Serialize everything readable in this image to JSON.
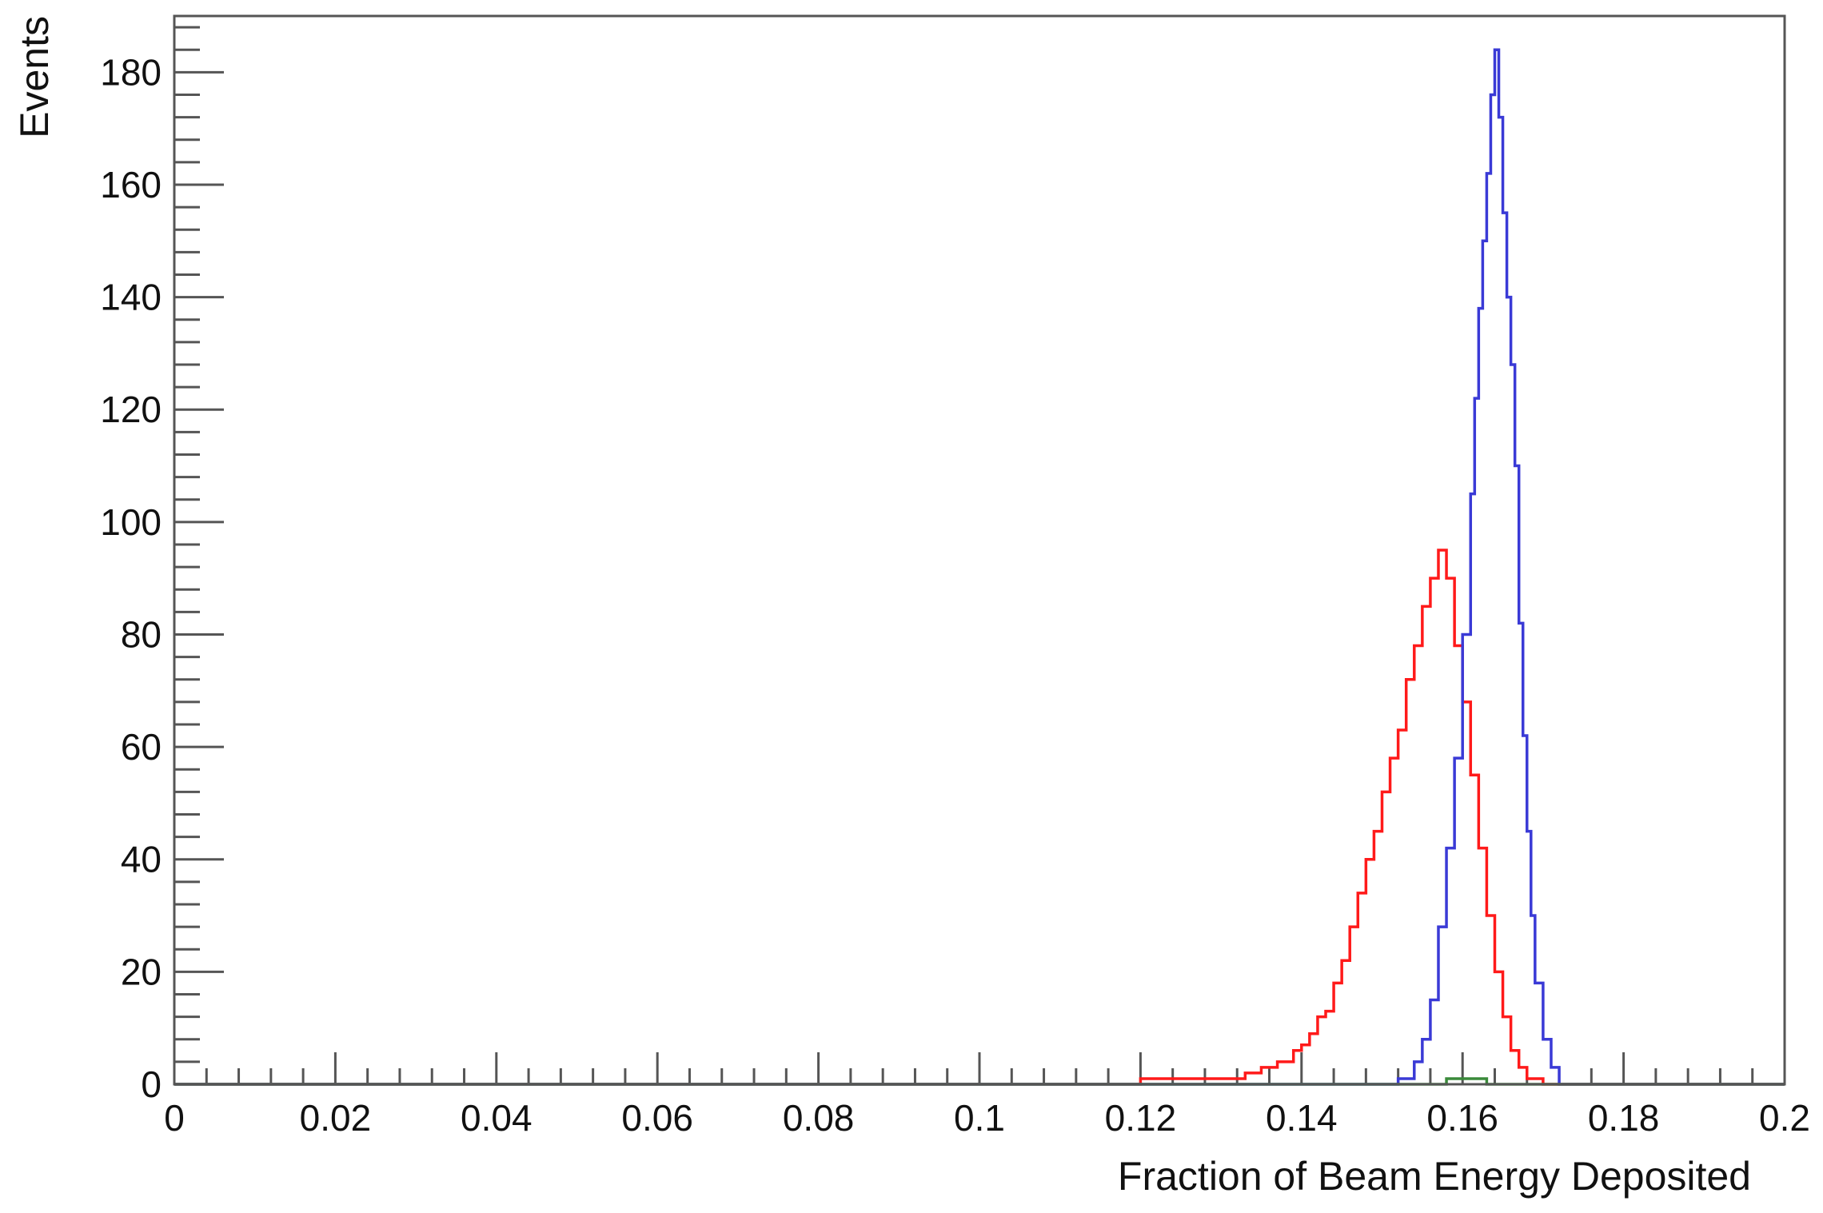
{
  "chart_data": {
    "type": "line",
    "xlabel": "Fraction of Beam Energy Deposited",
    "ylabel": "Events",
    "xlim": [
      0,
      0.2
    ],
    "ylim": [
      0,
      190
    ],
    "x_ticks": [
      0,
      0.02,
      0.04,
      0.06,
      0.08,
      0.1,
      0.12,
      0.14,
      0.16,
      0.18,
      0.2
    ],
    "x_tick_labels": [
      "0",
      "0.02",
      "0.04",
      "0.06",
      "0.08",
      "0.1",
      "0.12",
      "0.14",
      "0.16",
      "0.18",
      "0.2"
    ],
    "y_ticks": [
      0,
      20,
      40,
      60,
      80,
      100,
      120,
      140,
      160,
      180
    ],
    "y_tick_labels": [
      "0",
      "20",
      "40",
      "60",
      "80",
      "100",
      "120",
      "140",
      "160",
      "180"
    ],
    "grid": false,
    "legend": "none",
    "series": [
      {
        "color": "#ff1a1a",
        "x": [
          0.0,
          0.112,
          0.12,
          0.126,
          0.13,
          0.133,
          0.135,
          0.137,
          0.139,
          0.14,
          0.141,
          0.142,
          0.143,
          0.144,
          0.145,
          0.146,
          0.147,
          0.148,
          0.149,
          0.15,
          0.151,
          0.152,
          0.153,
          0.154,
          0.155,
          0.156,
          0.157,
          0.158,
          0.159,
          0.16,
          0.161,
          0.162,
          0.163,
          0.164,
          0.165,
          0.166,
          0.167,
          0.168,
          0.17,
          0.2
        ],
        "y": [
          0,
          0,
          1,
          1,
          1,
          2,
          3,
          4,
          6,
          7,
          9,
          12,
          13,
          18,
          22,
          28,
          34,
          40,
          45,
          52,
          58,
          63,
          72,
          78,
          85,
          90,
          95,
          90,
          78,
          68,
          55,
          42,
          30,
          20,
          12,
          6,
          3,
          1,
          0,
          0
        ]
      },
      {
        "color": "#3a3ad6",
        "x": [
          0.0,
          0.14,
          0.152,
          0.154,
          0.155,
          0.156,
          0.157,
          0.158,
          0.159,
          0.16,
          0.161,
          0.1615,
          0.162,
          0.1625,
          0.163,
          0.1635,
          0.164,
          0.1645,
          0.165,
          0.1655,
          0.166,
          0.1665,
          0.167,
          0.1675,
          0.168,
          0.1685,
          0.169,
          0.17,
          0.171,
          0.172,
          0.2
        ],
        "y": [
          0,
          0,
          1,
          4,
          8,
          15,
          28,
          42,
          58,
          80,
          105,
          122,
          138,
          150,
          162,
          176,
          184,
          172,
          155,
          140,
          128,
          110,
          82,
          62,
          45,
          30,
          18,
          8,
          3,
          0,
          0
        ]
      },
      {
        "color": "#3a8a3a",
        "x": [
          0.0,
          0.15,
          0.155,
          0.158,
          0.16,
          0.163,
          0.166,
          0.2
        ],
        "y": [
          0,
          0,
          0,
          1,
          1,
          0,
          0,
          0
        ]
      }
    ]
  }
}
